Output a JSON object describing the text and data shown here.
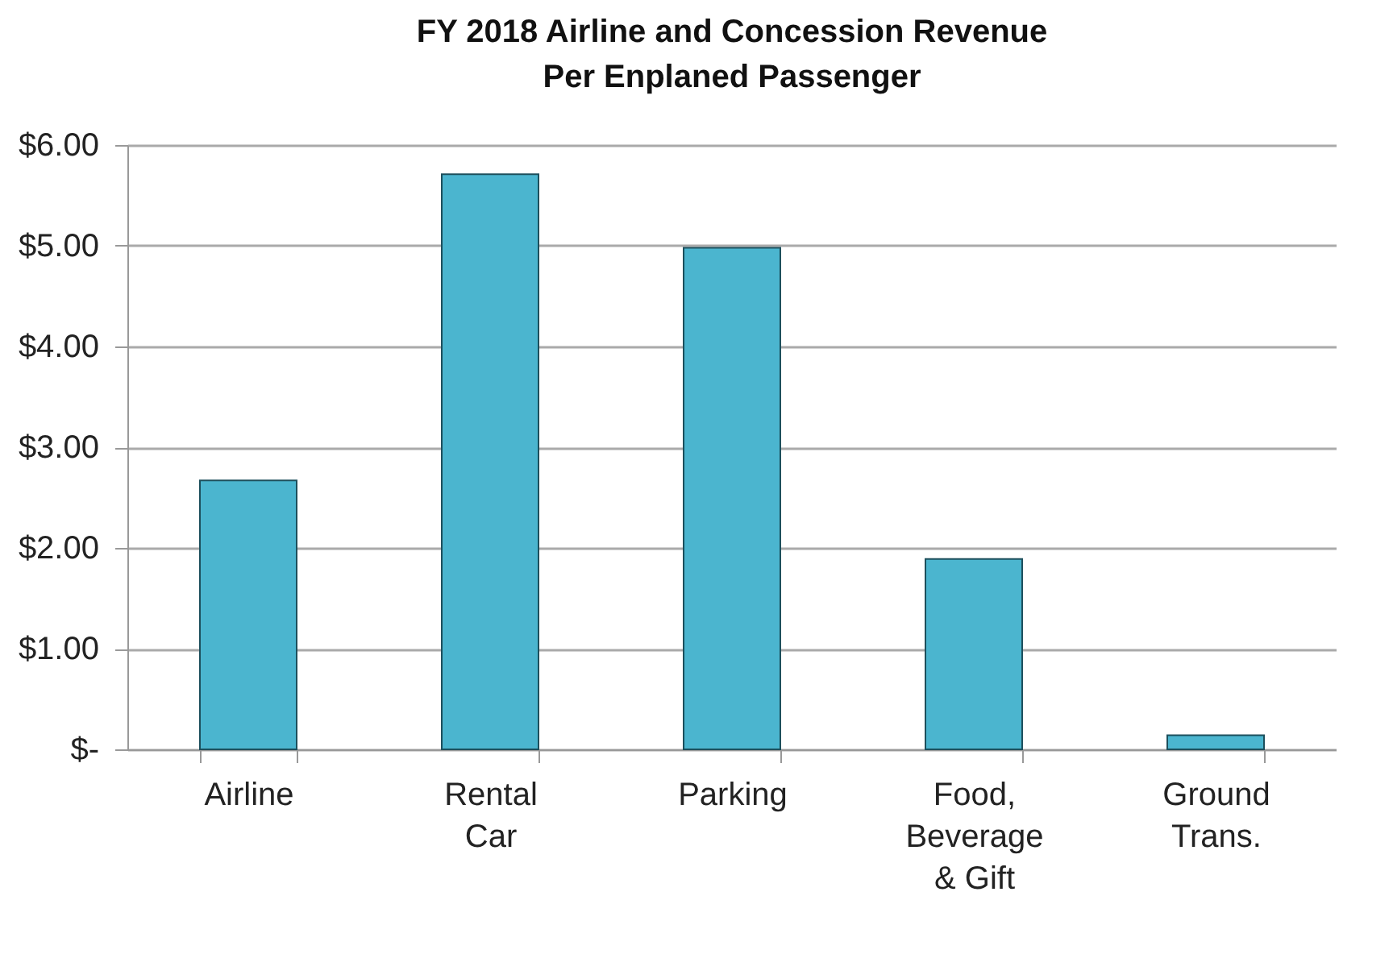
{
  "chart_data": {
    "type": "bar",
    "title": "FY 2018 Airline and Concession Revenue\nPer Enplaned Passenger",
    "categories": [
      "Airline",
      "Rental Car",
      "Parking",
      "Food, Beverage & Gift",
      "Ground Trans."
    ],
    "values": [
      2.67,
      5.71,
      4.98,
      1.89,
      0.14
    ],
    "color": "#4bb5cf",
    "ylim": [
      0,
      6
    ],
    "yticks": [
      {
        "value": 0,
        "label": "$-"
      },
      {
        "value": 1,
        "label": "$1.00"
      },
      {
        "value": 2,
        "label": "$2.00"
      },
      {
        "value": 3,
        "label": "$3.00"
      },
      {
        "value": 4,
        "label": "$4.00"
      },
      {
        "value": 5,
        "label": "$5.00"
      },
      {
        "value": 6,
        "label": "$6.00"
      }
    ],
    "grid": "y"
  }
}
